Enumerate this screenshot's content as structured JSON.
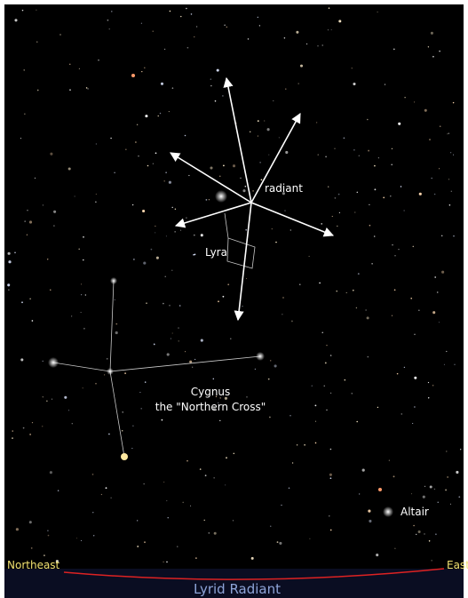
{
  "sky_map": {
    "radiant": "radiant",
    "lyra": "Lyra",
    "cygnus": "Cygnus",
    "cygnus_note": "the \"Northern Cross\"",
    "altair": "Altair",
    "northeast": "Northeast",
    "east": "East",
    "title": "Lyrid Radiant"
  }
}
